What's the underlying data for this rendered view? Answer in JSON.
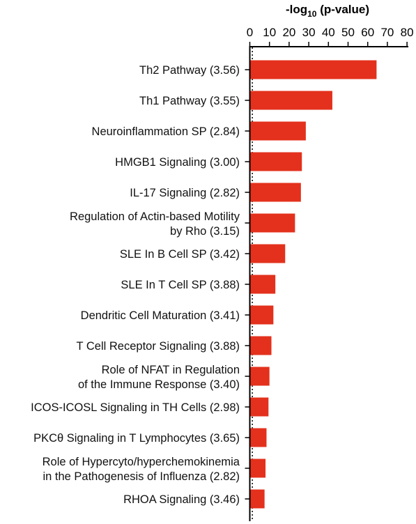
{
  "chart_data": {
    "type": "bar",
    "orientation": "horizontal",
    "xlabel_main": "-log",
    "xlabel_sub": "10",
    "xlabel_rest": " (p-value)",
    "xlim": [
      0,
      80
    ],
    "xticks": [
      "0",
      "10",
      "20",
      "30",
      "40",
      "50",
      "60",
      "70",
      "80"
    ],
    "xaxis_position": "top",
    "grid": false,
    "bar_color": "#e3311d",
    "categories": [
      [
        "Th2 Pathway (3.56)"
      ],
      [
        "Th1 Pathway (3.55)"
      ],
      [
        "Neuroinflammation SP (2.84)"
      ],
      [
        "HMGB1 Signaling (3.00)"
      ],
      [
        "IL-17 Signaling (2.82)"
      ],
      [
        "Regulation of Actin-based Motility",
        "by Rho (3.15)"
      ],
      [
        "SLE In B Cell SP (3.42)"
      ],
      [
        "SLE In T Cell SP (3.88)"
      ],
      [
        "Dendritic Cell Maturation (3.41)"
      ],
      [
        "T Cell Receptor Signaling (3.88)"
      ],
      [
        "Role of NFAT in Regulation",
        "of the Immune Response (3.40)"
      ],
      [
        "ICOS-ICOSL Signaling in TH Cells (2.98)"
      ],
      [
        "PKCθ Signaling in T Lymphocytes (3.65)"
      ],
      [
        "Role of Hypercyto/hyperchemokinemia",
        "in the Pathogenesis of Influenza (2.82)"
      ],
      [
        "RHOA Signaling (3.46)"
      ]
    ],
    "values": [
      64.5,
      42,
      28.5,
      26.5,
      26,
      23,
      18,
      13,
      12,
      11,
      10,
      9.5,
      8.5,
      8,
      7.5
    ],
    "reference_line": 1.3
  }
}
